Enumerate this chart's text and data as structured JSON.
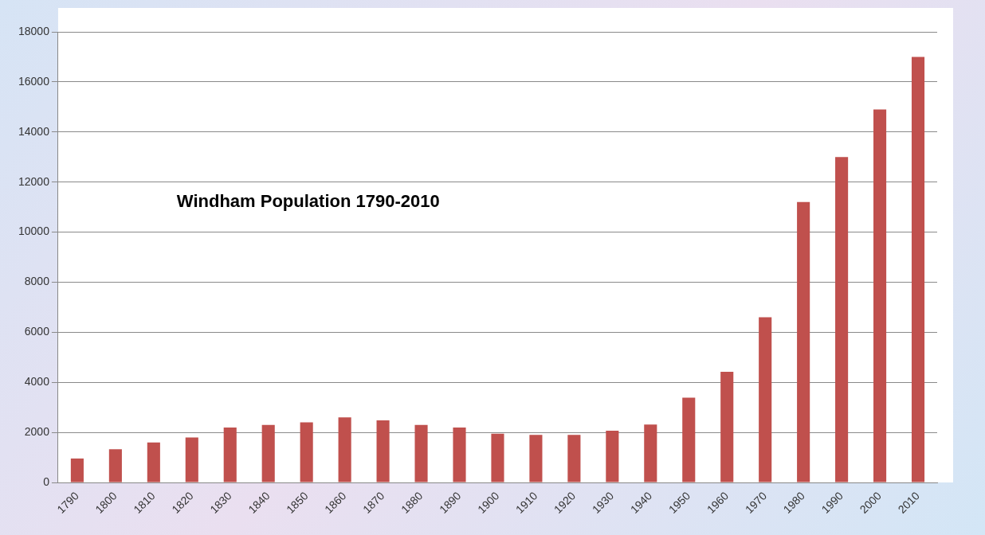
{
  "chart_data": {
    "type": "bar",
    "title": "Windham Population 1790-2010",
    "categories": [
      "1790",
      "1800",
      "1810",
      "1820",
      "1830",
      "1840",
      "1850",
      "1860",
      "1870",
      "1880",
      "1890",
      "1900",
      "1910",
      "1920",
      "1930",
      "1940",
      "1950",
      "1960",
      "1970",
      "1980",
      "1990",
      "2000",
      "2010"
    ],
    "values": [
      960,
      1330,
      1600,
      1800,
      2200,
      2300,
      2400,
      2600,
      2480,
      2300,
      2200,
      1950,
      1900,
      1900,
      2070,
      2320,
      3390,
      4420,
      6600,
      11200,
      13000,
      14900,
      17000
    ],
    "color": "#c0504d",
    "ylim": [
      0,
      18000
    ],
    "yticks": [
      0,
      2000,
      4000,
      6000,
      8000,
      10000,
      12000,
      14000,
      16000,
      18000
    ],
    "grid": "y",
    "legend": false
  }
}
